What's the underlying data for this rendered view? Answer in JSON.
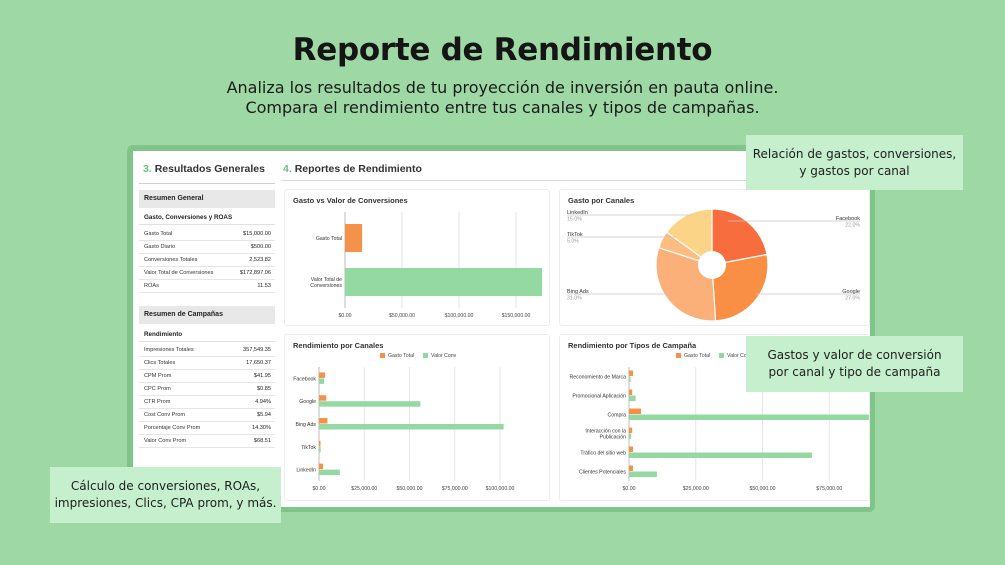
{
  "hero": {
    "title": "Reporte de Rendimiento",
    "subtitle_line1": "Analiza los resultados de tu proyección de inversión en pauta online.",
    "subtitle_line2": "Compara el rendimiento entre tus canales y tipos de campañas."
  },
  "left_panel": {
    "section_number": "3.",
    "section_title": "Resultados Generales",
    "summary_band": "Resumen General",
    "summary_subhead": "Gasto, Conversiones y ROAS",
    "summary_rows": [
      {
        "label": "Gasto Total",
        "value": "$15,000.00"
      },
      {
        "label": "Gasto Diario",
        "value": "$500.00"
      },
      {
        "label": "Conversiones Totales",
        "value": "2,523.82"
      },
      {
        "label": "Valor Total de Conversiones",
        "value": "$172,897.06"
      },
      {
        "label": "ROAs",
        "value": "11.53"
      }
    ],
    "campaign_band": "Resumen de Campañas",
    "campaign_subhead": "Rendimiento",
    "campaign_rows": [
      {
        "label": "Impresiones Totales",
        "value": "357,549.35"
      },
      {
        "label": "Clics Totales",
        "value": "17,650.37"
      },
      {
        "label": "CPM Prom",
        "value": "$41.95"
      },
      {
        "label": "CPC Prom",
        "value": "$0.85"
      },
      {
        "label": "CTR Prom",
        "value": "4.94%"
      },
      {
        "label": "Cost Conv Prom",
        "value": "$5.94"
      },
      {
        "label": "Porcentaje Conv Prom",
        "value": "14.30%"
      },
      {
        "label": "Valor Conv Prom",
        "value": "$68.51"
      }
    ]
  },
  "right_panel": {
    "section_number": "4.",
    "section_title": "Reportes de Rendimiento"
  },
  "colors": {
    "orange": "#f5924a",
    "green": "#94d9a1",
    "pie_facebook": "#f76d3e",
    "pie_google": "#f98f45",
    "pie_bing": "#fbb07a",
    "pie_tiktok": "#fdbd80",
    "pie_linkedin": "#fcd487"
  },
  "charts": {
    "gasto_vs_valor": {
      "title": "Gasto vs Valor de Conversiones",
      "categories": [
        "Gasto Total",
        "Valor Total de Conversiones"
      ],
      "category_lines": [
        [
          "Gasto Total"
        ],
        [
          "Valor Total de",
          "Conversiones"
        ]
      ],
      "values": [
        15000,
        172897.06
      ],
      "ticks": [
        "$0.00",
        "$50,000.00",
        "$100,000.00",
        "$150,000.00"
      ],
      "tick_values": [
        0,
        50000,
        100000,
        150000
      ]
    },
    "gasto_por_canales": {
      "title": "Gasto por Canales",
      "slices": [
        {
          "name": "Facebook",
          "percent": "22.0%",
          "value": 22.0
        },
        {
          "name": "Google",
          "percent": "27.0%",
          "value": 27.0
        },
        {
          "name": "Bing Ads",
          "percent": "31.0%",
          "value": 31.0
        },
        {
          "name": "TikTok",
          "percent": "5.0%",
          "value": 5.0
        },
        {
          "name": "LinkedIn",
          "percent": "15.0%",
          "value": 15.0
        }
      ]
    },
    "rendimiento_canales": {
      "title": "Rendimiento por Canales",
      "legend": [
        "Gasto Total",
        "Valor Conv"
      ],
      "categories": [
        "Facebook",
        "Google",
        "Bing Ads",
        "TikTok",
        "LinkedIn"
      ],
      "gasto": [
        3300,
        4050,
        4650,
        750,
        2250
      ],
      "valor": [
        2800,
        56000,
        102000,
        900,
        11500
      ],
      "ticks": [
        "$0.00",
        "$25,000.00",
        "$50,000.00",
        "$75,000.00",
        "$100,000.00"
      ],
      "tick_values": [
        0,
        25000,
        50000,
        75000,
        100000
      ]
    },
    "rendimiento_tipos": {
      "title": "Rendimiento por Tipos de Campaña",
      "legend": [
        "Gasto Total",
        "Valor Conv"
      ],
      "categories": [
        "Reconomiento de Marca",
        "Promocional Aplicación",
        "Compra",
        "Interacción con la Publicación",
        "Tráfico del sitio web",
        "Clientes Potenciales"
      ],
      "category_lines": [
        [
          "Reconomiento de Marca"
        ],
        [
          "Promocional Aplicación"
        ],
        [
          "Compra"
        ],
        [
          "Interacción con la",
          "Publicación"
        ],
        [
          "Tráfico del sitio web"
        ],
        [
          "Clientes Potenciales"
        ]
      ],
      "gasto": [
        1500,
        1200,
        4500,
        1200,
        1500,
        1500
      ],
      "valor": [
        500,
        2500,
        90000,
        800,
        68500,
        10500
      ],
      "ticks": [
        "$0.00",
        "$25,000.00",
        "$50,000.00",
        "$75,000.00"
      ],
      "tick_values": [
        0,
        25000,
        50000,
        75000
      ]
    }
  },
  "callouts": {
    "top_right": [
      "Relación de gastos, conversiones,",
      "y gastos por canal"
    ],
    "mid_right": [
      "Gastos y valor de conversión",
      "por canal y tipo de campaña"
    ],
    "bottom_left": [
      "Cálculo de conversiones, ROAs,",
      "impresiones, Clics, CPA prom, y más."
    ]
  }
}
